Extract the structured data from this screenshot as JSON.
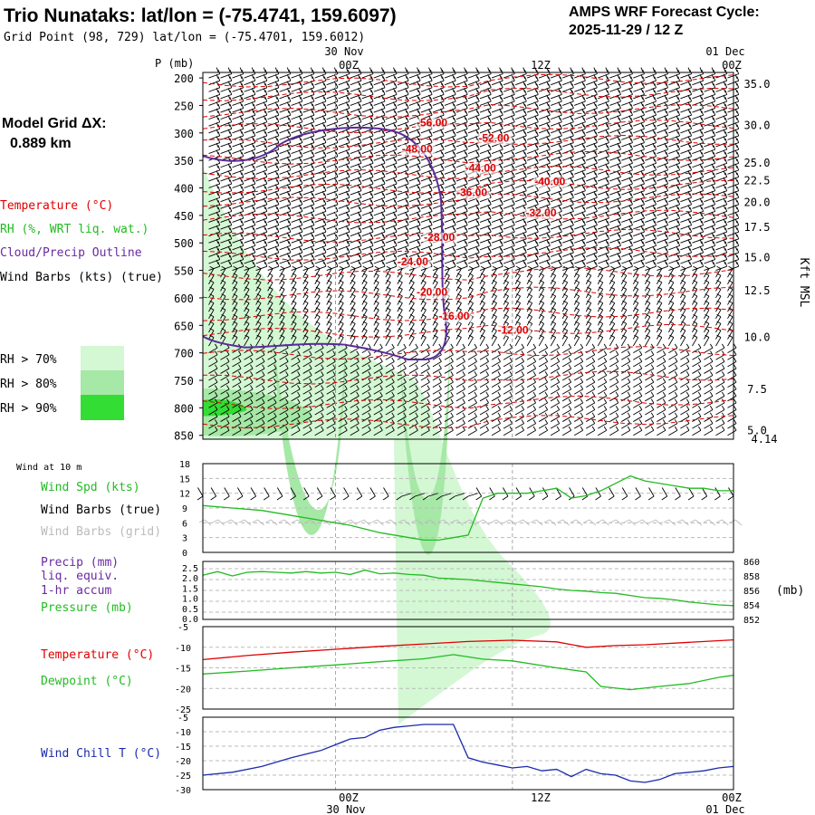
{
  "header": {
    "title": "Trio Nunataks:  lat/lon = (-75.4741, 159.6097)",
    "subtitle": "Grid Point (98, 729) lat/lon = (-75.4701, 159.6012)",
    "cycle_label": "AMPS WRF Forecast Cycle:",
    "cycle_value": "2025-11-29 / 12  Z",
    "grid_label": "Model Grid ΔX:",
    "grid_value": "0.889 km"
  },
  "time_axis": {
    "dates_top": [
      "30 Nov",
      "01 Dec"
    ],
    "labels": [
      "00Z",
      "12Z",
      "00Z"
    ],
    "dates_bottom": [
      "30 Nov",
      "01 Dec"
    ]
  },
  "colors": {
    "temperature": "#e00000",
    "rh": "#22bb22",
    "cloud": "#5a2a9a",
    "wind_spd": "#22bb22",
    "pressure": "#22bb22",
    "dewpoint": "#22bb22",
    "wind_chill": "#1a2aaa",
    "grid_barbs": "#bbbbbb",
    "rh70": "#d4f7d4",
    "rh80": "#a6e8a6",
    "rh90": "#33dd33"
  },
  "legend_profile": {
    "temperature": "Temperature (°C)",
    "rh": "RH (%, WRT liq. wat.)",
    "cloud": "Cloud/Precip Outline",
    "wind": "Wind Barbs (kts) (true)",
    "rh70": "RH > 70%",
    "rh80": "RH > 80%",
    "rh90": "RH > 90%"
  },
  "legend_wind": {
    "title": "Wind at 10 m",
    "spd": "Wind Spd (kts)",
    "barbs_true": "Wind Barbs (true)",
    "barbs_grid": "Wind Barbs (grid)"
  },
  "legend_precip": {
    "line1": "Precip (mm)",
    "line2": "liq. equiv.",
    "line3": "1-hr accum",
    "line4": "Pressure (mb)",
    "unit_right": "(mb)"
  },
  "legend_temp": {
    "temp": "Temperature (°C)",
    "dew": "Dewpoint (°C)"
  },
  "legend_chill": {
    "chill": "Wind Chill T (°C)"
  },
  "chart_data": [
    {
      "type": "line",
      "name": "profile",
      "ylabel": "P (mb)",
      "right_label": "Kft MSL",
      "pressure_ticks": [
        200,
        250,
        300,
        350,
        400,
        450,
        500,
        550,
        600,
        650,
        700,
        750,
        800,
        850
      ],
      "height_ticks": [
        35.0,
        30.0,
        25.0,
        22.5,
        20.0,
        17.5,
        15.0,
        12.5,
        10.0,
        7.5,
        5.0
      ],
      "height_ticks_p": [
        210,
        285,
        353,
        385,
        425,
        470,
        525,
        585,
        670,
        765,
        840
      ],
      "surface_height": 4.14,
      "isotherm_labels": [
        {
          "value": "-56.00",
          "hour": 14.5,
          "p": 288
        },
        {
          "value": "-52.00",
          "hour": 18.7,
          "p": 316
        },
        {
          "value": "-48.00",
          "hour": 13.5,
          "p": 336
        },
        {
          "value": "-44.00",
          "hour": 17.8,
          "p": 370
        },
        {
          "value": "-40.00",
          "hour": 22.5,
          "p": 395
        },
        {
          "value": "-36.00",
          "hour": 17.2,
          "p": 415
        },
        {
          "value": "-32.00",
          "hour": 21.9,
          "p": 452
        },
        {
          "value": "-28.00",
          "hour": 15.0,
          "p": 496
        },
        {
          "value": "-24.00",
          "hour": 13.2,
          "p": 541
        },
        {
          "value": "-20.00",
          "hour": 14.5,
          "p": 596
        },
        {
          "value": "-16.00",
          "hour": 16.0,
          "p": 640
        },
        {
          "value": "-12.00",
          "hour": 20.0,
          "p": 665
        }
      ]
    },
    {
      "type": "line",
      "name": "wind10m",
      "y_ticks": [
        0,
        3,
        6,
        9,
        12,
        15,
        18
      ],
      "ylim": [
        0,
        18
      ],
      "series": [
        {
          "x": [
            0,
            2,
            4,
            6,
            8,
            10,
            12,
            14,
            15,
            16,
            17,
            18,
            19,
            20,
            22,
            24,
            25,
            26,
            27,
            28,
            29,
            30,
            32,
            33,
            34,
            35,
            36
          ],
          "values": [
            9.5,
            9.0,
            8.5,
            7.5,
            6.5,
            5.5,
            4.0,
            3.0,
            2.5,
            2.5,
            3.0,
            3.5,
            11.0,
            12.0,
            12.0,
            13.0,
            11.0,
            11.5,
            12.5,
            14.0,
            15.5,
            14.5,
            13.5,
            13.0,
            13.0,
            12.5,
            12.5
          ]
        }
      ]
    },
    {
      "type": "line",
      "name": "pressure",
      "y_ticks_left": [
        0.0,
        0.5,
        1.0,
        1.5,
        2.0,
        2.5
      ],
      "y_ticks_right": [
        852,
        854,
        856,
        858,
        860
      ],
      "ylim": [
        852,
        860
      ],
      "series": [
        {
          "x": [
            0,
            1,
            2,
            3,
            4,
            5,
            6,
            7,
            8,
            9,
            10,
            11,
            12,
            13,
            14,
            15,
            16,
            17,
            18,
            19,
            20,
            21,
            22,
            23,
            24,
            25,
            26,
            27,
            28,
            29,
            30,
            31,
            32,
            33,
            34,
            35,
            36
          ],
          "values": [
            858.1,
            858.6,
            858.0,
            858.5,
            858.6,
            858.5,
            858.4,
            858.6,
            858.4,
            858.5,
            858.2,
            858.8,
            858.3,
            858.4,
            858.2,
            858.1,
            857.7,
            857.6,
            857.5,
            857.3,
            857.1,
            856.9,
            856.7,
            856.5,
            856.2,
            856.0,
            855.9,
            855.7,
            855.6,
            855.3,
            855.0,
            854.9,
            854.7,
            854.4,
            854.2,
            854.0,
            853.9
          ]
        }
      ]
    },
    {
      "type": "line",
      "name": "temperature",
      "y_ticks": [
        -5,
        -10,
        -15,
        -20,
        -25
      ],
      "ylim": [
        -25,
        -5
      ],
      "series": [
        {
          "name": "Temperature (°C)",
          "x": [
            0,
            3,
            6,
            9,
            12,
            15,
            18,
            21,
            24,
            26,
            28,
            30,
            33,
            36
          ],
          "values": [
            -13.0,
            -12.0,
            -11.2,
            -10.5,
            -9.8,
            -9.2,
            -8.6,
            -8.3,
            -8.7,
            -10.0,
            -9.6,
            -9.4,
            -8.8,
            -8.2
          ]
        },
        {
          "name": "Dewpoint (°C)",
          "x": [
            0,
            3,
            6,
            9,
            12,
            15,
            17,
            19,
            21,
            24,
            26,
            27,
            29,
            31,
            33,
            35,
            36
          ],
          "values": [
            -16.5,
            -15.8,
            -15.0,
            -14.3,
            -13.5,
            -12.8,
            -11.8,
            -12.9,
            -13.3,
            -15.0,
            -16.0,
            -19.5,
            -20.3,
            -19.5,
            -18.8,
            -17.3,
            -16.8
          ]
        }
      ]
    },
    {
      "type": "line",
      "name": "windchill",
      "y_ticks": [
        -5,
        -10,
        -15,
        -20,
        -25,
        -30
      ],
      "ylim": [
        -30,
        -5
      ],
      "series": [
        {
          "name": "Wind Chill T (°C)",
          "x": [
            0,
            2,
            4,
            6,
            8,
            9,
            10,
            11,
            12,
            13,
            14,
            15,
            16,
            17,
            18,
            19,
            20,
            21,
            22,
            23,
            24,
            25,
            26,
            27,
            28,
            29,
            30,
            31,
            32,
            33,
            34,
            35,
            36
          ],
          "values": [
            -25.0,
            -24.0,
            -22.0,
            -19.0,
            -16.5,
            -14.5,
            -12.5,
            -12.0,
            -9.5,
            -8.5,
            -8.0,
            -7.5,
            -7.5,
            -7.5,
            -19.0,
            -20.5,
            -21.5,
            -22.5,
            -22.0,
            -23.5,
            -23.0,
            -25.5,
            -23.0,
            -24.5,
            -25.0,
            -27.0,
            -27.5,
            -26.5,
            -24.5,
            -24.0,
            -23.5,
            -22.5,
            -22.0
          ]
        }
      ]
    }
  ]
}
